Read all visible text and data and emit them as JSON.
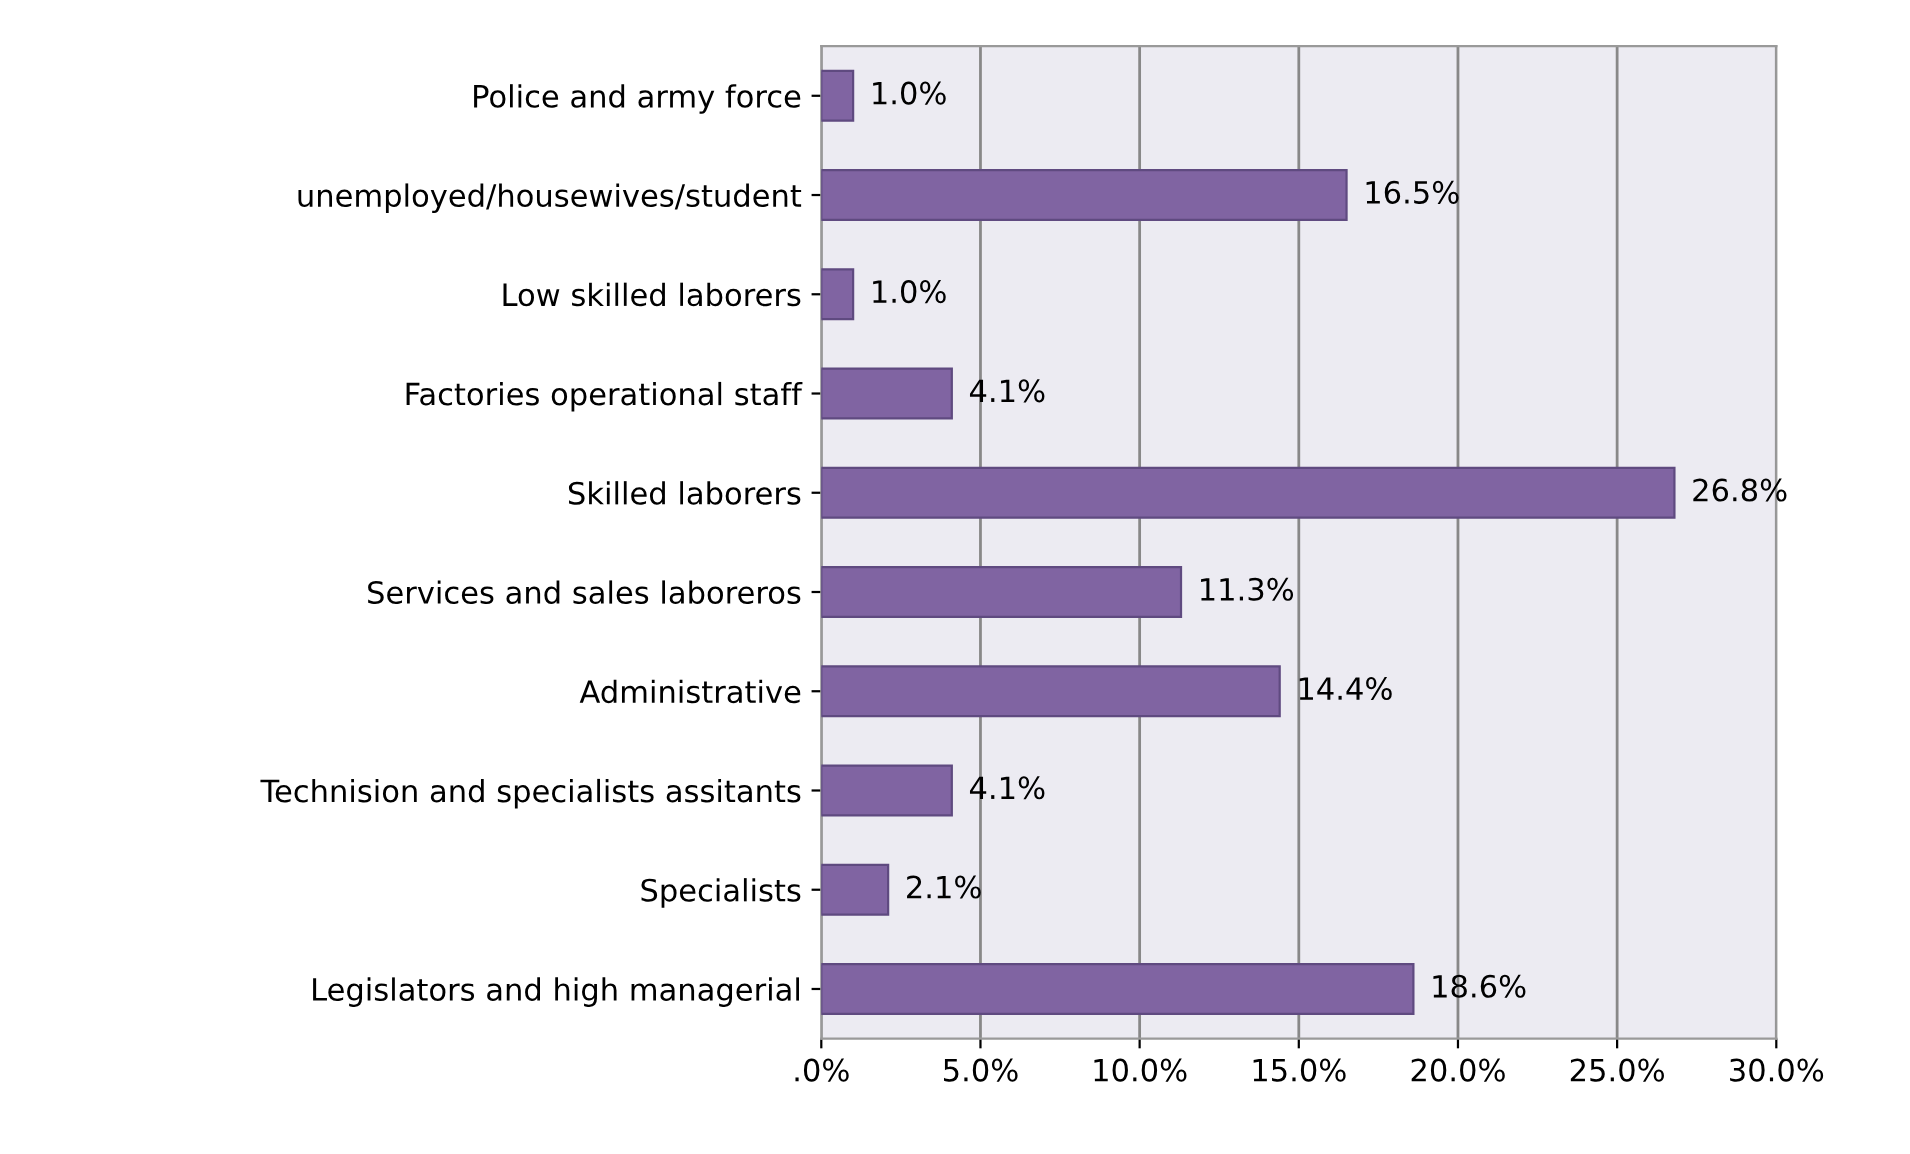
{
  "chart_data": {
    "type": "bar",
    "orientation": "horizontal",
    "categories": [
      "Police and army force",
      "unemployed/housewives/student",
      "Low skilled laborers",
      "Factories operational staff",
      "Skilled laborers",
      "Services and sales laboreros",
      "Administrative",
      "Technision and specialists assitants",
      "Specialists",
      "Legislators and high managerial"
    ],
    "values": [
      1.0,
      16.5,
      1.0,
      4.1,
      26.8,
      11.3,
      14.4,
      4.1,
      2.1,
      18.6
    ],
    "value_labels": [
      "1.0%",
      "16.5%",
      "1.0%",
      "4.1%",
      "26.8%",
      "11.3%",
      "14.4%",
      "4.1%",
      "2.1%",
      "18.6%"
    ],
    "color": "#8064a2",
    "xlim": [
      0,
      30
    ],
    "xticks": [
      {
        "value": 0,
        "label": ".0%"
      },
      {
        "value": 5,
        "label": "5.0%"
      },
      {
        "value": 10,
        "label": "10.0%"
      },
      {
        "value": 15,
        "label": "15.0%"
      },
      {
        "value": 20,
        "label": "20.0%"
      },
      {
        "value": 25,
        "label": "25.0%"
      },
      {
        "value": 30,
        "label": "30.0%"
      }
    ],
    "grid": "x"
  }
}
